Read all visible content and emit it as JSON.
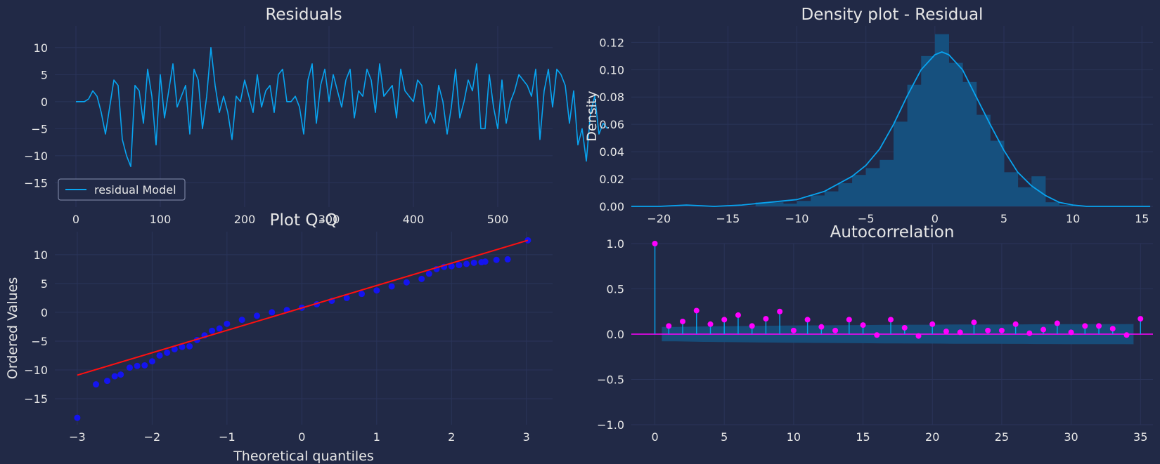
{
  "colors": {
    "background": "#212946",
    "grid": "#2A3459",
    "line": "#08A4F0",
    "band": "#16507E",
    "hist": "#16507E",
    "qq_points": "#1414F0",
    "qq_line": "#FF1010",
    "acf_marker": "#FF00FF"
  },
  "chart_data": [
    {
      "type": "line",
      "title": "Residuals",
      "legend": [
        "residual Model"
      ],
      "legend_position": "lower-left",
      "xlim": [
        -25,
        565
      ],
      "ylim": [
        -19.5,
        14
      ],
      "xticks": [
        0,
        100,
        200,
        300,
        400,
        500
      ],
      "yticks": [
        10,
        5,
        0,
        -5,
        -10,
        -15
      ],
      "grid": true,
      "series": [
        {
          "name": "residual Model",
          "x_start": 0,
          "x_step": 5,
          "values": [
            0,
            0,
            0,
            0.5,
            2,
            1,
            -2,
            -6,
            -1,
            4,
            3,
            -7,
            -10,
            -12,
            3,
            2,
            -4,
            6,
            1,
            -8,
            5,
            -3,
            2,
            7,
            -1,
            1,
            3,
            -6,
            6,
            4,
            -5,
            1,
            10,
            3,
            -2,
            1,
            -2,
            -7,
            1,
            0,
            4,
            1,
            -2,
            5,
            -1,
            2,
            3,
            -2,
            5,
            6,
            0,
            0,
            1,
            -1,
            -6,
            4,
            7,
            -4,
            3,
            6,
            0,
            5,
            2,
            -1,
            4,
            6,
            -3,
            2,
            1,
            6,
            4,
            -2,
            7,
            1,
            2,
            3,
            -3,
            6,
            2,
            1,
            0,
            4,
            3,
            -4,
            -2,
            -4,
            3,
            0,
            -6,
            -1,
            6,
            -3,
            0,
            4,
            2,
            7,
            -5,
            -5,
            5,
            -1,
            -5,
            4,
            -4,
            0,
            2,
            5,
            4,
            3,
            1,
            6,
            -7,
            2,
            6,
            -1,
            6,
            5,
            3,
            -4,
            2,
            -8,
            -5,
            -11,
            -2,
            1,
            -6,
            -4,
            -5
          ]
        }
      ]
    },
    {
      "type": "bar",
      "title": "Density plot - Residual",
      "ylabel": "Density",
      "xlim": [
        -22,
        15.8
      ],
      "ylim": [
        0,
        0.132
      ],
      "xticks": [
        -20,
        -15,
        -10,
        -5,
        0,
        5,
        10,
        15
      ],
      "yticks": [
        0.0,
        0.02,
        0.04,
        0.06,
        0.08,
        0.1,
        0.12
      ],
      "grid": true,
      "bin_edges": [
        -13,
        -12,
        -11,
        -10,
        -9,
        -8,
        -7,
        -6,
        -5,
        -4,
        -3,
        -2,
        -1,
        0,
        1,
        2,
        3,
        4,
        5,
        6,
        7,
        8,
        9,
        10
      ],
      "values": [
        0.003,
        0.003,
        0.002,
        0.004,
        0.008,
        0.011,
        0.017,
        0.023,
        0.028,
        0.034,
        0.062,
        0.089,
        0.11,
        0.126,
        0.105,
        0.091,
        0.067,
        0.048,
        0.025,
        0.014,
        0.022,
        0.003,
        0.001
      ],
      "kde": {
        "x": [
          -22,
          -20,
          -18,
          -16,
          -14,
          -13,
          -12,
          -10,
          -8,
          -6,
          -5,
          -4,
          -3,
          -2,
          -1,
          0,
          0.5,
          1,
          2,
          3,
          4,
          5,
          6,
          7,
          8,
          9,
          10,
          11,
          12,
          14,
          15.6
        ],
        "y": [
          0,
          0,
          0.001,
          0,
          0.001,
          0.002,
          0.003,
          0.005,
          0.011,
          0.022,
          0.03,
          0.042,
          0.06,
          0.081,
          0.1,
          0.111,
          0.113,
          0.111,
          0.1,
          0.08,
          0.06,
          0.041,
          0.025,
          0.015,
          0.008,
          0.003,
          0.001,
          0,
          0,
          0,
          0
        ]
      }
    },
    {
      "type": "scatter",
      "title": "Plot Q-Q",
      "xlabel": "Theoretical quantiles",
      "ylabel": "Ordered Values",
      "xlim": [
        -3.3,
        3.35
      ],
      "ylim": [
        -19.5,
        14
      ],
      "xticks": [
        -3,
        -2,
        -1,
        0,
        1,
        2,
        3
      ],
      "yticks": [
        10,
        5,
        0,
        -5,
        -10,
        -15
      ],
      "grid": true,
      "points": {
        "x": [
          -3.0,
          -2.75,
          -2.6,
          -2.5,
          -2.42,
          -2.3,
          -2.2,
          -2.1,
          -2.0,
          -1.9,
          -1.8,
          -1.7,
          -1.6,
          -1.5,
          -1.4,
          -1.3,
          -1.2,
          -1.1,
          -1.0,
          -0.8,
          -0.6,
          -0.4,
          -0.2,
          0.0,
          0.2,
          0.4,
          0.6,
          0.8,
          1.0,
          1.2,
          1.4,
          1.6,
          1.7,
          1.8,
          1.9,
          2.0,
          2.1,
          2.2,
          2.3,
          2.4,
          2.45,
          2.6,
          2.75,
          3.02
        ],
        "y": [
          -18.3,
          -12.5,
          -11.9,
          -11.1,
          -10.8,
          -9.6,
          -9.3,
          -9.2,
          -8.5,
          -7.5,
          -7.0,
          -6.4,
          -6.0,
          -5.9,
          -4.8,
          -4.0,
          -3.2,
          -2.8,
          -2.0,
          -1.3,
          -0.6,
          0.0,
          0.4,
          0.8,
          1.4,
          2.0,
          2.5,
          3.2,
          3.8,
          4.5,
          5.2,
          5.8,
          6.7,
          7.5,
          7.9,
          8.0,
          8.2,
          8.4,
          8.6,
          8.7,
          8.8,
          9.1,
          9.2,
          12.5
        ]
      },
      "fit_line": {
        "x": [
          -3.0,
          3.02
        ],
        "y": [
          -10.9,
          12.5
        ]
      }
    },
    {
      "type": "bar",
      "title": "Autocorrelation",
      "xlim": [
        -1.7,
        35.9
      ],
      "ylim": [
        -1.0,
        1.0
      ],
      "xticks": [
        0,
        5,
        10,
        15,
        20,
        25,
        30,
        35
      ],
      "yticks": [
        1.0,
        0.5,
        0.0,
        -0.5,
        -1.0
      ],
      "grid": true,
      "lags": [
        0,
        1,
        2,
        3,
        4,
        5,
        6,
        7,
        8,
        9,
        10,
        11,
        12,
        13,
        14,
        15,
        16,
        17,
        18,
        19,
        20,
        21,
        22,
        23,
        24,
        25,
        26,
        27,
        28,
        29,
        30,
        31,
        32,
        33,
        34,
        35
      ],
      "values": [
        1.0,
        0.09,
        0.14,
        0.26,
        0.11,
        0.16,
        0.21,
        0.09,
        0.17,
        0.25,
        0.04,
        0.16,
        0.08,
        0.04,
        0.16,
        0.1,
        -0.01,
        0.16,
        0.07,
        -0.02,
        0.11,
        0.03,
        0.02,
        0.13,
        0.04,
        0.04,
        0.11,
        0.01,
        0.05,
        0.12,
        0.02,
        0.09,
        0.09,
        0.06,
        -0.01,
        0.17
      ],
      "confidence_band": [
        0.08,
        0.08,
        0.082,
        0.085,
        0.087,
        0.088,
        0.09,
        0.092,
        0.093,
        0.095,
        0.096,
        0.097,
        0.098,
        0.099,
        0.1,
        0.101,
        0.102,
        0.103,
        0.104,
        0.104,
        0.105,
        0.106,
        0.106,
        0.107,
        0.107,
        0.108,
        0.108,
        0.109,
        0.109,
        0.11,
        0.11,
        0.11,
        0.111,
        0.111,
        0.112
      ]
    }
  ]
}
